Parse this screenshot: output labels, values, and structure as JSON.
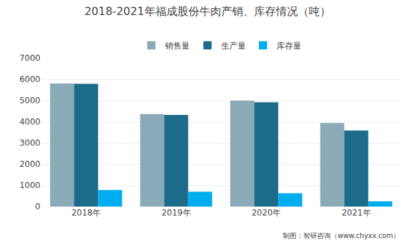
{
  "chart_data": {
    "type": "bar",
    "title": "2018-2021年福成股份牛肉产销、库存情况（吨）",
    "categories": [
      "2018年",
      "2019年",
      "2020年",
      "2021年"
    ],
    "series": [
      {
        "name": "销售量",
        "color": "#8BAAB8",
        "values": [
          5810,
          4360,
          5000,
          3940
        ]
      },
      {
        "name": "生产量",
        "color": "#1C6B8A",
        "values": [
          5790,
          4320,
          4920,
          3590
        ]
      },
      {
        "name": "库存量",
        "color": "#00AEEF",
        "values": [
          780,
          700,
          630,
          250
        ]
      }
    ],
    "ylim": [
      0,
      7000
    ],
    "yticks": [
      0,
      1000,
      2000,
      3000,
      4000,
      5000,
      6000,
      7000
    ],
    "grid": true,
    "legend": "top",
    "annotations": [
      "制图：智研咨询（www.chyxx.com）"
    ]
  }
}
